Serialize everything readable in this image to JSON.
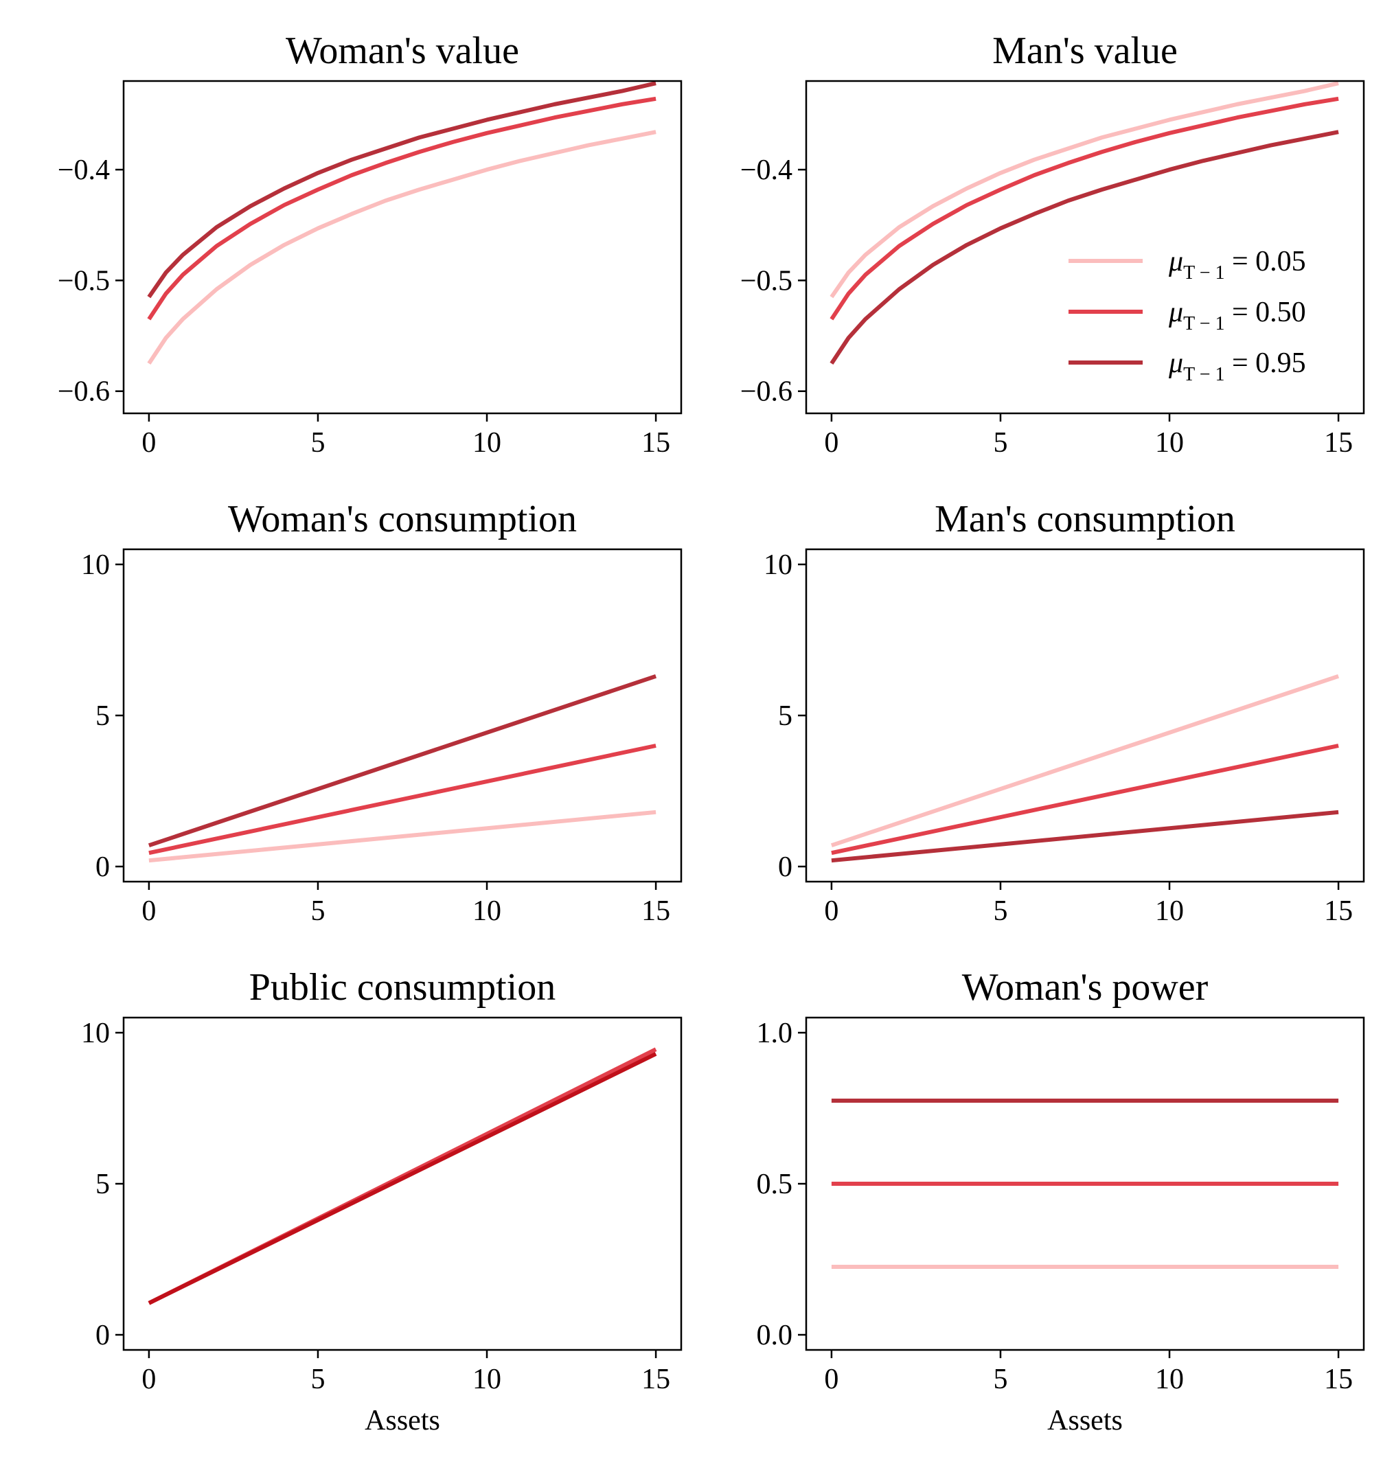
{
  "colors": {
    "s005": "#fbbdbd",
    "s050": "#e2404c",
    "s095": "#b5303a",
    "public": "#c0101a"
  },
  "legend": {
    "entries": [
      {
        "prefix": "μ",
        "sub": "T − 1",
        "suffix": " = 0.05",
        "color_key": "s005"
      },
      {
        "prefix": "μ",
        "sub": "T − 1",
        "suffix": " = 0.50",
        "color_key": "s050"
      },
      {
        "prefix": "μ",
        "sub": "T − 1",
        "suffix": " = 0.95",
        "color_key": "s095"
      }
    ]
  },
  "chart_data": [
    {
      "type": "line",
      "title": "Woman's value",
      "xlabel": "",
      "ylabel": "",
      "xlim": [
        -0.75,
        15.75
      ],
      "ylim": [
        -0.62,
        -0.32
      ],
      "xticks": [
        0,
        5,
        10,
        15
      ],
      "xtick_labels": [
        "0",
        "5",
        "10",
        "15"
      ],
      "yticks": [
        -0.6,
        -0.5,
        -0.4
      ],
      "ytick_labels": [
        "−0.6",
        "−0.5",
        "−0.4"
      ],
      "grid": false,
      "series": [
        {
          "color_key": "s005",
          "x": [
            0,
            0.5,
            1,
            2,
            3,
            4,
            5,
            6,
            7,
            8,
            9,
            10,
            11,
            12,
            13,
            14,
            15
          ],
          "y": [
            -0.575,
            -0.552,
            -0.535,
            -0.508,
            -0.486,
            -0.468,
            -0.453,
            -0.44,
            -0.428,
            -0.418,
            -0.409,
            -0.4,
            -0.392,
            -0.385,
            -0.378,
            -0.372,
            -0.366
          ]
        },
        {
          "color_key": "s050",
          "x": [
            0,
            0.5,
            1,
            2,
            3,
            4,
            5,
            6,
            7,
            8,
            9,
            10,
            11,
            12,
            13,
            14,
            15
          ],
          "y": [
            -0.535,
            -0.512,
            -0.495,
            -0.469,
            -0.449,
            -0.432,
            -0.418,
            -0.405,
            -0.394,
            -0.384,
            -0.375,
            -0.367,
            -0.36,
            -0.353,
            -0.347,
            -0.341,
            -0.336
          ]
        },
        {
          "color_key": "s095",
          "x": [
            0,
            0.5,
            1,
            2,
            3,
            4,
            5,
            6,
            7,
            8,
            9,
            10,
            11,
            12,
            13,
            14,
            15
          ],
          "y": [
            -0.515,
            -0.493,
            -0.477,
            -0.452,
            -0.433,
            -0.417,
            -0.403,
            -0.391,
            -0.381,
            -0.371,
            -0.363,
            -0.355,
            -0.348,
            -0.341,
            -0.335,
            -0.329,
            -0.322
          ]
        }
      ]
    },
    {
      "type": "line",
      "title": "Man's value",
      "xlabel": "",
      "ylabel": "",
      "xlim": [
        -0.75,
        15.75
      ],
      "ylim": [
        -0.62,
        -0.32
      ],
      "xticks": [
        0,
        5,
        10,
        15
      ],
      "xtick_labels": [
        "0",
        "5",
        "10",
        "15"
      ],
      "yticks": [
        -0.6,
        -0.5,
        -0.4
      ],
      "ytick_labels": [
        "−0.6",
        "−0.5",
        "−0.4"
      ],
      "grid": false,
      "legend_position": "lower-right",
      "series": [
        {
          "color_key": "s005",
          "x": [
            0,
            0.5,
            1,
            2,
            3,
            4,
            5,
            6,
            7,
            8,
            9,
            10,
            11,
            12,
            13,
            14,
            15
          ],
          "y": [
            -0.515,
            -0.493,
            -0.477,
            -0.452,
            -0.433,
            -0.417,
            -0.403,
            -0.391,
            -0.381,
            -0.371,
            -0.363,
            -0.355,
            -0.348,
            -0.341,
            -0.335,
            -0.329,
            -0.322
          ]
        },
        {
          "color_key": "s050",
          "x": [
            0,
            0.5,
            1,
            2,
            3,
            4,
            5,
            6,
            7,
            8,
            9,
            10,
            11,
            12,
            13,
            14,
            15
          ],
          "y": [
            -0.535,
            -0.512,
            -0.495,
            -0.469,
            -0.449,
            -0.432,
            -0.418,
            -0.405,
            -0.394,
            -0.384,
            -0.375,
            -0.367,
            -0.36,
            -0.353,
            -0.347,
            -0.341,
            -0.336
          ]
        },
        {
          "color_key": "s095",
          "x": [
            0,
            0.5,
            1,
            2,
            3,
            4,
            5,
            6,
            7,
            8,
            9,
            10,
            11,
            12,
            13,
            14,
            15
          ],
          "y": [
            -0.575,
            -0.552,
            -0.535,
            -0.508,
            -0.486,
            -0.468,
            -0.453,
            -0.44,
            -0.428,
            -0.418,
            -0.409,
            -0.4,
            -0.392,
            -0.385,
            -0.378,
            -0.372,
            -0.366
          ]
        }
      ]
    },
    {
      "type": "line",
      "title": "Woman's consumption",
      "xlabel": "",
      "ylabel": "",
      "xlim": [
        -0.75,
        15.75
      ],
      "ylim": [
        -0.5,
        10.5
      ],
      "xticks": [
        0,
        5,
        10,
        15
      ],
      "xtick_labels": [
        "0",
        "5",
        "10",
        "15"
      ],
      "yticks": [
        0,
        5,
        10
      ],
      "ytick_labels": [
        "0",
        "5",
        "10"
      ],
      "grid": false,
      "series": [
        {
          "color_key": "s005",
          "x": [
            0,
            15
          ],
          "y": [
            0.2,
            1.8
          ]
        },
        {
          "color_key": "s050",
          "x": [
            0,
            15
          ],
          "y": [
            0.45,
            4.0
          ]
        },
        {
          "color_key": "s095",
          "x": [
            0,
            15
          ],
          "y": [
            0.7,
            6.3
          ]
        }
      ]
    },
    {
      "type": "line",
      "title": "Man's consumption",
      "xlabel": "",
      "ylabel": "",
      "xlim": [
        -0.75,
        15.75
      ],
      "ylim": [
        -0.5,
        10.5
      ],
      "xticks": [
        0,
        5,
        10,
        15
      ],
      "xtick_labels": [
        "0",
        "5",
        "10",
        "15"
      ],
      "yticks": [
        0,
        5,
        10
      ],
      "ytick_labels": [
        "0",
        "5",
        "10"
      ],
      "grid": false,
      "series": [
        {
          "color_key": "s005",
          "x": [
            0,
            15
          ],
          "y": [
            0.7,
            6.3
          ]
        },
        {
          "color_key": "s050",
          "x": [
            0,
            15
          ],
          "y": [
            0.45,
            4.0
          ]
        },
        {
          "color_key": "s095",
          "x": [
            0,
            15
          ],
          "y": [
            0.2,
            1.8
          ]
        }
      ]
    },
    {
      "type": "line",
      "title": "Public consumption",
      "xlabel": "Assets",
      "ylabel": "",
      "xlim": [
        -0.75,
        15.75
      ],
      "ylim": [
        -0.5,
        10.5
      ],
      "xticks": [
        0,
        5,
        10,
        15
      ],
      "xtick_labels": [
        "0",
        "5",
        "10",
        "15"
      ],
      "yticks": [
        0,
        5,
        10
      ],
      "ytick_labels": [
        "0",
        "5",
        "10"
      ],
      "grid": false,
      "series": [
        {
          "color_key": "s050",
          "x": [
            0,
            15
          ],
          "y": [
            1.05,
            9.45
          ]
        },
        {
          "color_key": "public",
          "x": [
            0,
            15
          ],
          "y": [
            1.05,
            9.3
          ]
        }
      ]
    },
    {
      "type": "line",
      "title": "Woman's power",
      "xlabel": "Assets",
      "ylabel": "",
      "xlim": [
        -0.75,
        15.75
      ],
      "ylim": [
        -0.05,
        1.05
      ],
      "xticks": [
        0,
        5,
        10,
        15
      ],
      "xtick_labels": [
        "0",
        "5",
        "10",
        "15"
      ],
      "yticks": [
        0.0,
        0.5,
        1.0
      ],
      "ytick_labels": [
        "0.0",
        "0.5",
        "1.0"
      ],
      "grid": false,
      "series": [
        {
          "color_key": "s005",
          "x": [
            0,
            15
          ],
          "y": [
            0.225,
            0.225
          ]
        },
        {
          "color_key": "s050",
          "x": [
            0,
            15
          ],
          "y": [
            0.5,
            0.5
          ]
        },
        {
          "color_key": "s095",
          "x": [
            0,
            15
          ],
          "y": [
            0.775,
            0.775
          ]
        }
      ]
    }
  ]
}
